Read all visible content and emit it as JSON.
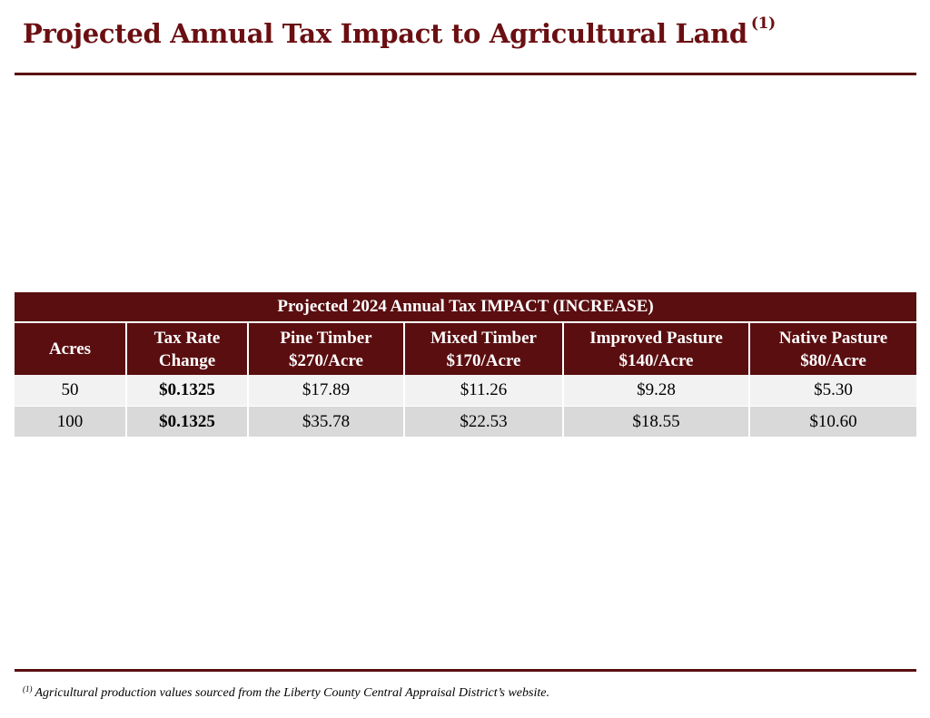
{
  "title": {
    "text": "Projected Annual Tax Impact to Agricultural Land",
    "footnote_marker": "(1)"
  },
  "table": {
    "banner": "Projected 2024 Annual Tax IMPACT (INCREASE)",
    "headers": [
      {
        "line1": "Acres",
        "line2": ""
      },
      {
        "line1": "Tax Rate",
        "line2": "Change"
      },
      {
        "line1": "Pine Timber",
        "line2": "$270/Acre"
      },
      {
        "line1": "Mixed Timber",
        "line2": "$170/Acre"
      },
      {
        "line1": "Improved Pasture",
        "line2": "$140/Acre"
      },
      {
        "line1": "Native Pasture",
        "line2": "$80/Acre"
      }
    ],
    "rows": [
      {
        "acres": "50",
        "tax_rate_change": "$0.1325",
        "pine_timber": "$17.89",
        "mixed_timber": "$11.26",
        "improved_pasture": "$9.28",
        "native_pasture": "$5.30"
      },
      {
        "acres": "100",
        "tax_rate_change": "$0.1325",
        "pine_timber": "$35.78",
        "mixed_timber": "$22.53",
        "improved_pasture": "$18.55",
        "native_pasture": "$10.60"
      }
    ]
  },
  "footnote": {
    "marker": "(1)",
    "text": "Agricultural production values sourced from the Liberty County Central Appraisal District’s website."
  },
  "colors": {
    "brand_maroon": "#5a0e10",
    "title_maroon": "#6b0f12",
    "row_light": "#f2f2f2",
    "row_dark": "#d9d9d9"
  }
}
